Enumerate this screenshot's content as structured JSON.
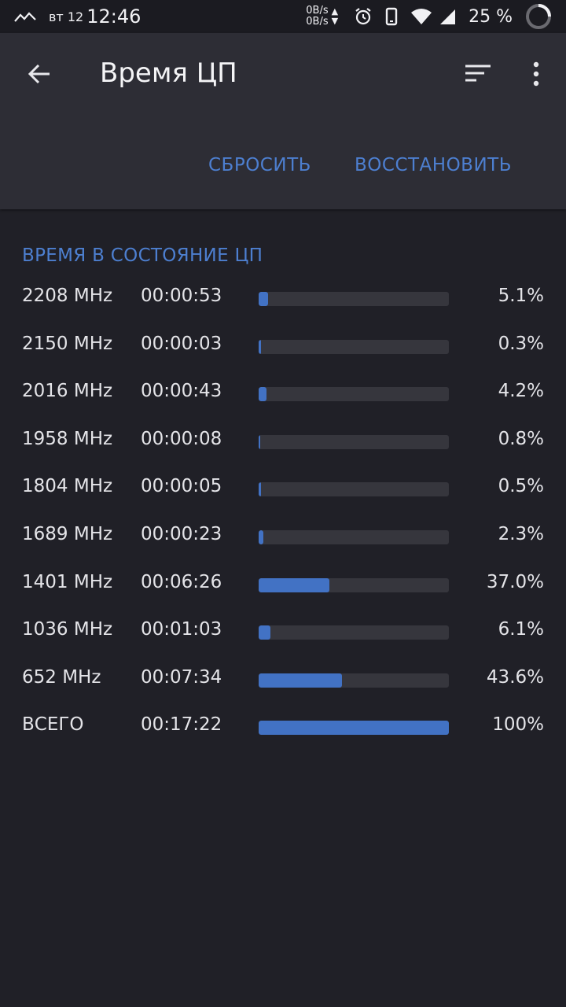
{
  "status_bar": {
    "day": "вт 12",
    "time": "12:46",
    "net_up": "0B/s",
    "net_down": "0B/s",
    "battery": "25 %",
    "icons": [
      "signal-trend-icon",
      "alarm-icon",
      "phone-icon",
      "wifi-icon",
      "cell-signal-icon",
      "battery-ring-icon"
    ]
  },
  "app_bar": {
    "title": "Время ЦП",
    "reset_label": "СБРОСИТЬ",
    "restore_label": "ВОССТАНОВИТЬ",
    "icons": [
      "back-arrow-icon",
      "sort-icon",
      "more-vert-icon"
    ]
  },
  "section": {
    "title": "ВРЕМЯ В СОСТОЯНИЕ ЦП"
  },
  "accent_color": "#4d7fd0",
  "bar_color": "#4272c4",
  "rows": [
    {
      "freq": "2208 MHz",
      "time": "00:00:53",
      "percent": "5.1%",
      "value": 5.1
    },
    {
      "freq": "2150 MHz",
      "time": "00:00:03",
      "percent": "0.3%",
      "value": 0.3
    },
    {
      "freq": "2016 MHz",
      "time": "00:00:43",
      "percent": "4.2%",
      "value": 4.2
    },
    {
      "freq": "1958 MHz",
      "time": "00:00:08",
      "percent": "0.8%",
      "value": 0.8
    },
    {
      "freq": "1804 MHz",
      "time": "00:00:05",
      "percent": "0.5%",
      "value": 0.5
    },
    {
      "freq": "1689 MHz",
      "time": "00:00:23",
      "percent": "2.3%",
      "value": 2.3
    },
    {
      "freq": "1401 MHz",
      "time": "00:06:26",
      "percent": "37.0%",
      "value": 37.0
    },
    {
      "freq": "1036 MHz",
      "time": "00:01:03",
      "percent": "6.1%",
      "value": 6.1
    },
    {
      "freq": "652 MHz",
      "time": "00:07:34",
      "percent": "43.6%",
      "value": 43.6
    },
    {
      "freq": "ВСЕГО",
      "time": "00:17:22",
      "percent": "100%",
      "value": 100
    }
  ]
}
